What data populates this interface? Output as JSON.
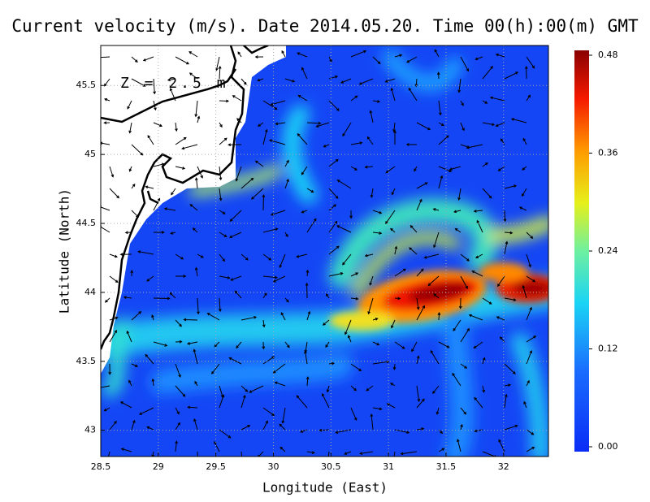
{
  "chart_data": {
    "type": "heatmap",
    "title": "Current velocity (m/s). Date 2014.05.20. Time 00(h):00(m) GMT",
    "annotation": "Z = 2.5 m",
    "xlabel": "Longitude (East)",
    "ylabel": "Latitude (North)",
    "xlim": [
      28.5,
      32.39
    ],
    "ylim": [
      42.81,
      45.79
    ],
    "xticks": [
      28.5,
      29,
      29.5,
      30,
      30.5,
      31,
      31.5,
      32
    ],
    "yticks": [
      43,
      43.5,
      44,
      44.5,
      45,
      45.5
    ],
    "grid": true,
    "colorbar": {
      "lim": [
        0,
        0.48
      ],
      "ticks": [
        {
          "value": 0,
          "label": "0.00"
        },
        {
          "value": 0.12,
          "label": "0.12"
        },
        {
          "value": 0.24,
          "label": "0.24"
        },
        {
          "value": 0.36,
          "label": "0.36"
        },
        {
          "value": 0.48,
          "label": "0.48"
        }
      ]
    }
  }
}
